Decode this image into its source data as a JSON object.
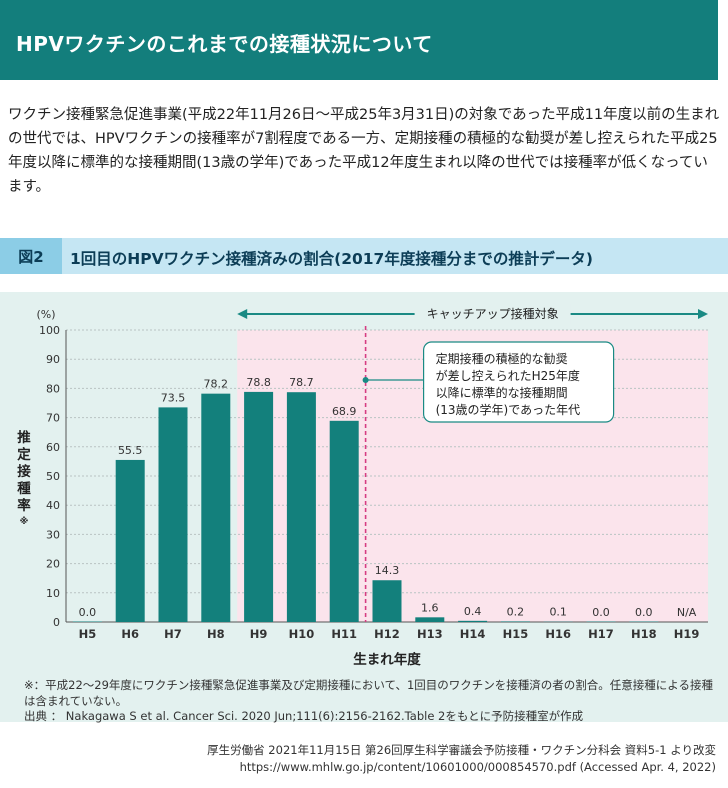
{
  "header": {
    "title": "HPVワクチンのこれまでの接種状況について"
  },
  "intro": "ワクチン接種緊急促進事業(平成22年11月26日〜平成25年3月31日)の対象であった平成11年度以前の生まれの世代では、HPVワクチンの接種率が7割程度である一方、定期接種の積極的な勧奨が差し控えられた平成25年度以降に標準的な接種期間(13歳の学年)であった平成12年度生まれ以降の世代では接種率が低くなっています。",
  "figure": {
    "number": "図2",
    "title": "1回目のHPVワクチン接種済みの割合(2017年度接種分までの推計データ)"
  },
  "chart_data": {
    "type": "bar",
    "categories": [
      "H5",
      "H6",
      "H7",
      "H8",
      "H9",
      "H10",
      "H11",
      "H12",
      "H13",
      "H14",
      "H15",
      "H16",
      "H17",
      "H18",
      "H19"
    ],
    "values": [
      0.0,
      55.5,
      73.5,
      78.2,
      78.8,
      78.7,
      68.9,
      14.3,
      1.6,
      0.4,
      0.2,
      0.1,
      0.0,
      0.0,
      null
    ],
    "value_labels": [
      "0.0",
      "55.5",
      "73.5",
      "78.2",
      "78.8",
      "78.7",
      "68.9",
      "14.3",
      "1.6",
      "0.4",
      "0.2",
      "0.1",
      "0.0",
      "0.0",
      "N/A"
    ],
    "ylim": [
      0,
      100
    ],
    "yticks": [
      0,
      10,
      20,
      30,
      40,
      50,
      60,
      70,
      80,
      90,
      100
    ],
    "y_unit": "(%)",
    "ylabel": "推定接種率※",
    "xlabel": "生まれ年度",
    "catchup_label": "キャッチアップ接種対象",
    "annotation": "定期接種の積極的な勧奨が差し控えられたH25年度以降に標準的な接種期間(13歳の学年)であった年代",
    "grid": true,
    "colors": {
      "bar": "#13807c",
      "highlight": "#fbe4ec",
      "divider": "#d63c82",
      "arrow": "#1a8a84"
    }
  },
  "notes": "※：平成22〜29年度にワクチン接種緊急促進事業及び定期接種において、1回目のワクチンを接種済の者の割合。任意接種による接種は含まれていない。",
  "source": "出典 ： Nakagawa S et al. Cancer Sci. 2020 Jun;111(6):2156-2162.Table 2をもとに予防接種室が作成",
  "credit": [
    "厚生労働省 2021年11月15日 第26回厚生科学審議会予防接種・ワクチン分科会 資料5-1 より改変",
    "https://www.mhlw.go.jp/content/10601000/000854570.pdf (Accessed Apr. 4, 2022)"
  ]
}
